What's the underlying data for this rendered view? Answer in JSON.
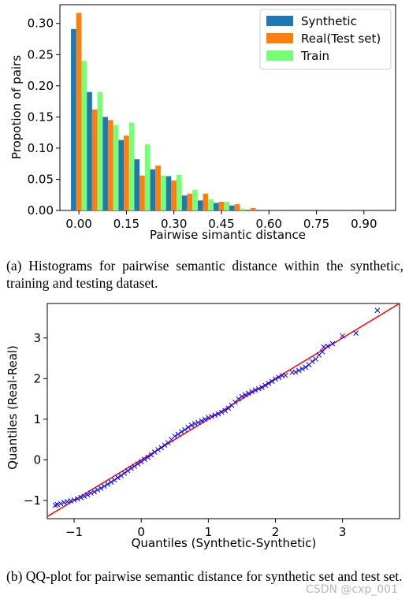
{
  "chart_data": [
    {
      "type": "bar",
      "title": "",
      "xlabel": "Pairwise simantic distance",
      "ylabel": "Propotion of pairs",
      "xlim": [
        -0.06,
        1.0
      ],
      "ylim": [
        0,
        0.33
      ],
      "xticks": [
        "0.00",
        "0.15",
        "0.30",
        "0.45",
        "0.60",
        "0.75",
        "0.90"
      ],
      "yticks": [
        "0.00",
        "0.05",
        "0.10",
        "0.15",
        "0.20",
        "0.25",
        "0.30"
      ],
      "bin_width": 0.05,
      "bin_starts": [
        -0.025,
        0.025,
        0.075,
        0.125,
        0.175,
        0.225,
        0.275,
        0.325,
        0.375,
        0.425,
        0.475,
        0.525,
        0.575
      ],
      "legend_position": "top-right",
      "grid": false,
      "series": [
        {
          "name": "Synthetic",
          "color": "#1f77b4",
          "values": [
            0.291,
            0.19,
            0.15,
            0.113,
            0.082,
            0.066,
            0.055,
            0.024,
            0.016,
            0.012,
            0.008,
            0.0,
            0.0
          ]
        },
        {
          "name": "Real(Test set)",
          "color": "#ff7f0e",
          "values": [
            0.317,
            0.162,
            0.145,
            0.12,
            0.056,
            0.072,
            0.048,
            0.027,
            0.027,
            0.014,
            0.01,
            0.004,
            0.0
          ]
        },
        {
          "name": "Train",
          "color": "#77ff77",
          "values": [
            0.24,
            0.19,
            0.137,
            0.141,
            0.106,
            0.056,
            0.057,
            0.033,
            0.018,
            0.014,
            0.003,
            0.0,
            0.0
          ]
        }
      ]
    },
    {
      "type": "scatter",
      "title": "",
      "xlabel": "Quantiles (Synthetic-Synthetic)",
      "ylabel": "Quantiles (Real-Real)",
      "xlim": [
        -1.4,
        3.85
      ],
      "ylim": [
        -1.45,
        3.85
      ],
      "xticks": [
        -1,
        0,
        1,
        2,
        3
      ],
      "yticks": [
        -1,
        0,
        1,
        2,
        3
      ],
      "marker": "x",
      "marker_color": "#0000ff",
      "reference_line": {
        "color": "#ff0000",
        "slope": 1,
        "intercept": 0
      },
      "points": [
        [
          -1.28,
          -1.12
        ],
        [
          -1.25,
          -1.1
        ],
        [
          -1.2,
          -1.08
        ],
        [
          -1.15,
          -1.05
        ],
        [
          -1.1,
          -1.03
        ],
        [
          -1.05,
          -1.01
        ],
        [
          -1.0,
          -0.99
        ],
        [
          -0.95,
          -0.96
        ],
        [
          -0.9,
          -0.93
        ],
        [
          -0.85,
          -0.9
        ],
        [
          -0.8,
          -0.86
        ],
        [
          -0.75,
          -0.82
        ],
        [
          -0.7,
          -0.79
        ],
        [
          -0.65,
          -0.74
        ],
        [
          -0.6,
          -0.7
        ],
        [
          -0.55,
          -0.65
        ],
        [
          -0.5,
          -0.6
        ],
        [
          -0.45,
          -0.55
        ],
        [
          -0.4,
          -0.5
        ],
        [
          -0.35,
          -0.44
        ],
        [
          -0.3,
          -0.39
        ],
        [
          -0.25,
          -0.33
        ],
        [
          -0.2,
          -0.27
        ],
        [
          -0.15,
          -0.21
        ],
        [
          -0.1,
          -0.16
        ],
        [
          -0.05,
          -0.1
        ],
        [
          0.0,
          -0.05
        ],
        [
          0.05,
          0.01
        ],
        [
          0.1,
          0.06
        ],
        [
          0.15,
          0.12
        ],
        [
          0.2,
          0.19
        ],
        [
          0.25,
          0.25
        ],
        [
          0.3,
          0.3
        ],
        [
          0.35,
          0.36
        ],
        [
          0.4,
          0.42
        ],
        [
          0.45,
          0.5
        ],
        [
          0.5,
          0.58
        ],
        [
          0.55,
          0.63
        ],
        [
          0.6,
          0.69
        ],
        [
          0.65,
          0.74
        ],
        [
          0.7,
          0.8
        ],
        [
          0.75,
          0.85
        ],
        [
          0.8,
          0.89
        ],
        [
          0.85,
          0.92
        ],
        [
          0.9,
          0.96
        ],
        [
          0.95,
          1.0
        ],
        [
          1.0,
          1.04
        ],
        [
          1.05,
          1.07
        ],
        [
          1.1,
          1.1
        ],
        [
          1.15,
          1.13
        ],
        [
          1.2,
          1.17
        ],
        [
          1.25,
          1.21
        ],
        [
          1.3,
          1.27
        ],
        [
          1.35,
          1.34
        ],
        [
          1.4,
          1.42
        ],
        [
          1.45,
          1.5
        ],
        [
          1.5,
          1.56
        ],
        [
          1.55,
          1.6
        ],
        [
          1.6,
          1.64
        ],
        [
          1.65,
          1.68
        ],
        [
          1.7,
          1.72
        ],
        [
          1.75,
          1.75
        ],
        [
          1.8,
          1.78
        ],
        [
          1.85,
          1.83
        ],
        [
          1.9,
          1.88
        ],
        [
          1.95,
          1.93
        ],
        [
          2.0,
          1.99
        ],
        [
          2.05,
          2.03
        ],
        [
          2.1,
          2.07
        ],
        [
          2.15,
          2.08
        ],
        [
          2.25,
          2.15
        ],
        [
          2.3,
          2.16
        ],
        [
          2.35,
          2.2
        ],
        [
          2.4,
          2.24
        ],
        [
          2.45,
          2.28
        ],
        [
          2.5,
          2.34
        ],
        [
          2.55,
          2.42
        ],
        [
          2.6,
          2.48
        ],
        [
          2.65,
          2.58
        ],
        [
          2.7,
          2.66
        ],
        [
          2.72,
          2.78
        ],
        [
          2.78,
          2.8
        ],
        [
          2.85,
          2.86
        ],
        [
          3.0,
          3.05
        ],
        [
          3.2,
          3.12
        ],
        [
          3.52,
          3.68
        ]
      ]
    }
  ],
  "captions": {
    "a": "(a) Histograms for pairwise semantic distance within the synthetic, training and testing dataset.",
    "b": "(b) QQ-plot for pairwise semantic distance for synthetic set and test set."
  },
  "watermark": "CSDN @cxp_001"
}
